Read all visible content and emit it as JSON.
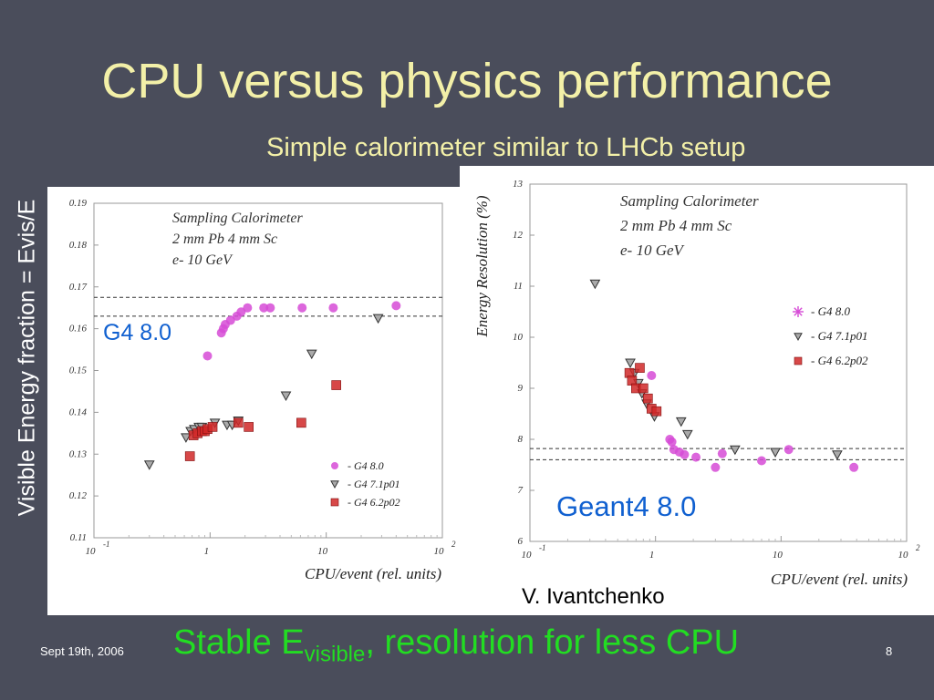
{
  "slide": {
    "title": "CPU versus physics performance",
    "subtitle": "Simple calorimeter similar to LHCb setup",
    "side_ylabel": "Visible Energy fraction = Evis/E",
    "bottom_text_pre": "Stable E",
    "bottom_text_sub": "visible",
    "bottom_text_post": ", resolution for less CPU",
    "date": "Sept 19th, 2006",
    "page": "8",
    "author": "V. Ivantchenko",
    "g4_overlay": "G4 8.0",
    "geant_overlay": "Geant4 8.0",
    "colors": {
      "background": "#4a4d5b",
      "title": "#f3f0a8",
      "bottom": "#22dd22",
      "overlay": "#1060d0"
    }
  },
  "chart_data": [
    {
      "type": "scatter",
      "x_scale": "log",
      "xlim": [
        0.1,
        100
      ],
      "ylim": [
        0.11,
        0.19
      ],
      "xlabel": "CPU/event (rel. units)",
      "ylabel": "",
      "yticks": [
        "0.11",
        "0.12",
        "0.13",
        "0.14",
        "0.15",
        "0.16",
        "0.17",
        "0.18",
        "0.19"
      ],
      "xticks": [
        {
          "base": "10",
          "exp": "-1"
        },
        {
          "base": "1",
          "exp": ""
        },
        {
          "base": "10",
          "exp": ""
        },
        {
          "base": "10",
          "exp": "2"
        }
      ],
      "annotation": [
        "Sampling Calorimeter",
        "2 mm Pb 4 mm Sc",
        "e- 10 GeV"
      ],
      "reference_lines": [
        0.1675,
        0.163
      ],
      "series": [
        {
          "name": "- G4 8.0",
          "marker": "circle",
          "color": "#d64bd6",
          "points": [
            [
              0.95,
              0.1535
            ],
            [
              1.25,
              0.159
            ],
            [
              1.3,
              0.16
            ],
            [
              1.35,
              0.161
            ],
            [
              1.5,
              0.162
            ],
            [
              1.7,
              0.163
            ],
            [
              1.85,
              0.164
            ],
            [
              2.1,
              0.165
            ],
            [
              2.9,
              0.165
            ],
            [
              3.3,
              0.165
            ],
            [
              6.2,
              0.165
            ],
            [
              11.5,
              0.165
            ],
            [
              40,
              0.1655
            ]
          ]
        },
        {
          "name": "- G4 7.1p01",
          "marker": "triangle",
          "color": "#555555",
          "points": [
            [
              0.3,
              0.1275
            ],
            [
              0.62,
              0.134
            ],
            [
              0.68,
              0.1355
            ],
            [
              0.73,
              0.136
            ],
            [
              0.8,
              0.1365
            ],
            [
              0.85,
              0.1365
            ],
            [
              1.1,
              0.1375
            ],
            [
              1.4,
              0.137
            ],
            [
              1.55,
              0.137
            ],
            [
              1.75,
              0.138
            ],
            [
              4.5,
              0.144
            ],
            [
              7.5,
              0.154
            ],
            [
              28,
              0.1625
            ]
          ]
        },
        {
          "name": "- G4 6.2p02",
          "marker": "square",
          "color": "#d02828",
          "points": [
            [
              0.67,
              0.1295
            ],
            [
              0.72,
              0.1345
            ],
            [
              0.78,
              0.135
            ],
            [
              0.85,
              0.1355
            ],
            [
              0.9,
              0.1355
            ],
            [
              0.95,
              0.136
            ],
            [
              1.05,
              0.1365
            ],
            [
              1.75,
              0.1375
            ],
            [
              2.15,
              0.1365
            ],
            [
              6.1,
              0.1375
            ],
            [
              12.2,
              0.1465
            ]
          ]
        }
      ]
    },
    {
      "type": "scatter",
      "x_scale": "log",
      "xlim": [
        0.1,
        100
      ],
      "ylim": [
        6,
        13
      ],
      "xlabel": "CPU/event (rel. units)",
      "ylabel": "Energy Resolution (%)",
      "yticks": [
        "6",
        "7",
        "8",
        "9",
        "10",
        "11",
        "12",
        "13"
      ],
      "xticks": [
        {
          "base": "10",
          "exp": "-1"
        },
        {
          "base": "1",
          "exp": ""
        },
        {
          "base": "10",
          "exp": ""
        },
        {
          "base": "10",
          "exp": "2"
        }
      ],
      "annotation": [
        "Sampling Calorimeter",
        "2 mm Pb 4 mm Sc",
        "e- 10 GeV"
      ],
      "reference_lines": [
        7.82,
        7.6
      ],
      "series": [
        {
          "name": "- G4 8.0",
          "marker": "circle",
          "color": "#d64bd6",
          "points": [
            [
              0.93,
              9.25
            ],
            [
              1.3,
              8.0
            ],
            [
              1.35,
              7.95
            ],
            [
              1.4,
              7.8
            ],
            [
              1.55,
              7.75
            ],
            [
              1.7,
              7.7
            ],
            [
              2.1,
              7.65
            ],
            [
              3.0,
              7.45
            ],
            [
              3.4,
              7.72
            ],
            [
              7,
              7.58
            ],
            [
              11.5,
              7.8
            ],
            [
              38,
              7.45
            ]
          ]
        },
        {
          "name": "- G4 7.1p01",
          "marker": "triangle",
          "color": "#555555",
          "points": [
            [
              0.33,
              11.05
            ],
            [
              0.63,
              9.5
            ],
            [
              0.68,
              9.3
            ],
            [
              0.73,
              9.1
            ],
            [
              0.78,
              8.9
            ],
            [
              0.85,
              8.7
            ],
            [
              0.98,
              8.45
            ],
            [
              1.6,
              8.35
            ],
            [
              1.8,
              8.1
            ],
            [
              4.3,
              7.8
            ],
            [
              9.0,
              7.75
            ],
            [
              28,
              7.7
            ]
          ]
        },
        {
          "name": "- G4 6.2p02",
          "marker": "square",
          "color": "#d02828",
          "points": [
            [
              0.62,
              9.3
            ],
            [
              0.65,
              9.15
            ],
            [
              0.7,
              9.0
            ],
            [
              0.75,
              9.4
            ],
            [
              0.8,
              9.0
            ],
            [
              0.87,
              8.8
            ],
            [
              0.93,
              8.6
            ],
            [
              1.02,
              8.55
            ]
          ]
        }
      ]
    }
  ]
}
